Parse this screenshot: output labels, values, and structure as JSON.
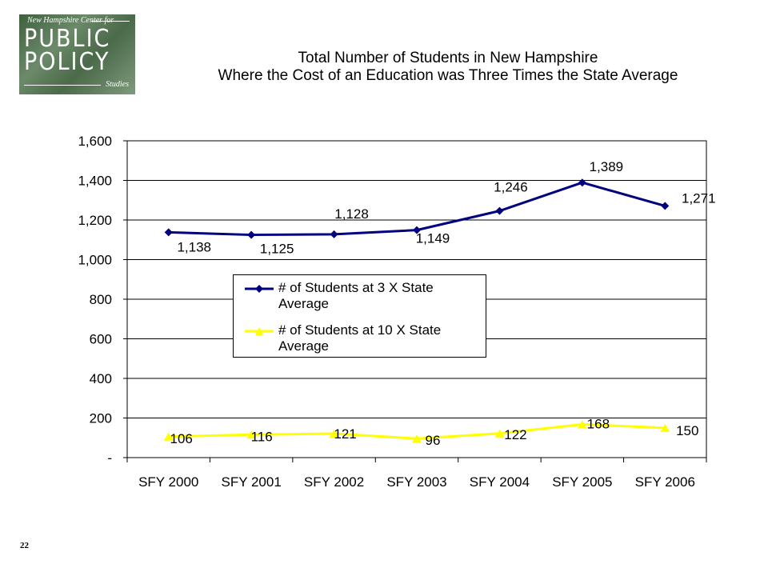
{
  "logo": {
    "line1": "New Hampshire Center for",
    "line2": "PUBLIC",
    "line3": "POLICY",
    "line4": "Studies"
  },
  "page_number": "22",
  "chart_data": {
    "type": "line",
    "title": "Total Number of Students in New Hampshire",
    "subtitle": "Where the Cost of an Education was Three Times the State Average",
    "categories": [
      "SFY 2000",
      "SFY 2001",
      "SFY 2002",
      "SFY 2003",
      "SFY 2004",
      "SFY 2005",
      "SFY 2006"
    ],
    "ylim": [
      0,
      1600
    ],
    "yticks": [
      0,
      200,
      400,
      600,
      800,
      1000,
      1200,
      1400,
      1600
    ],
    "ytick_labels": [
      "-",
      "200",
      "400",
      "600",
      "800",
      "1,000",
      "1,200",
      "1,400",
      "1,600"
    ],
    "grid": true,
    "legend_position": "center",
    "series": [
      {
        "name": "# of Students at 3 X State Average",
        "color": "#000080",
        "marker": "diamond",
        "values": [
          1138,
          1125,
          1128,
          1149,
          1246,
          1389,
          1271
        ],
        "labels": [
          "1,138",
          "1,125",
          "1,128",
          "1,149",
          "1,246",
          "1,389",
          "1,271"
        ]
      },
      {
        "name": "# of Students at 10 X State Average",
        "color": "#ffff00",
        "marker": "triangle",
        "values": [
          106,
          116,
          121,
          96,
          122,
          168,
          150
        ],
        "labels": [
          "106",
          "116",
          "121",
          "96",
          "122",
          "168",
          "150"
        ]
      }
    ]
  }
}
